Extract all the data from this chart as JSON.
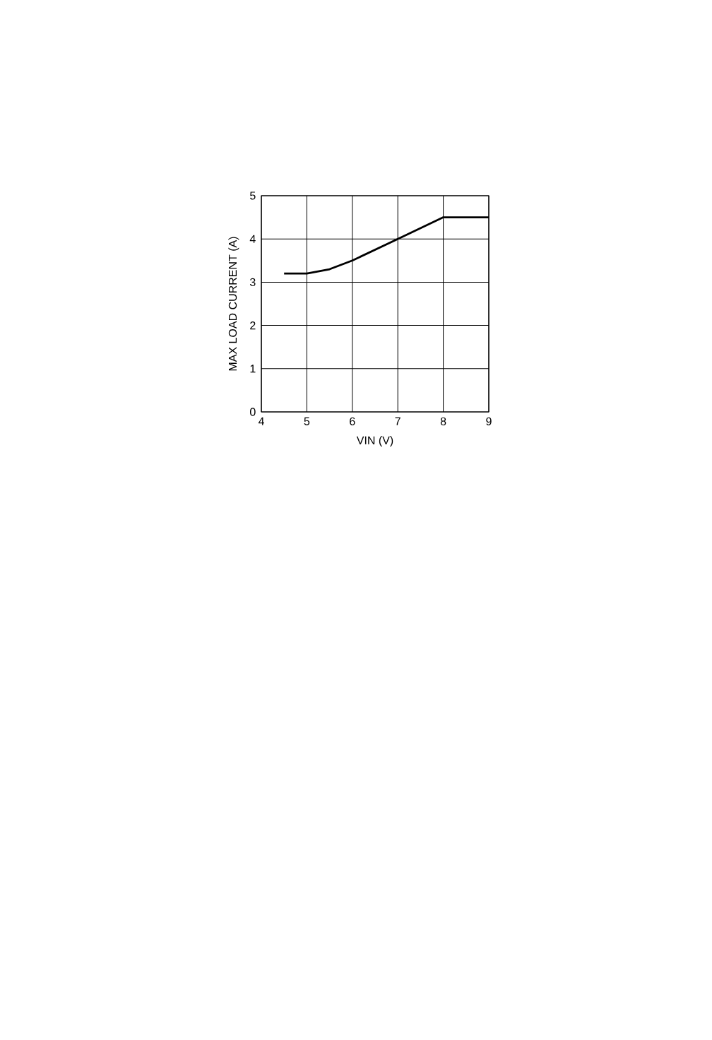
{
  "chart_data": {
    "type": "line",
    "xlabel": "VIN (V)",
    "ylabel": "MAX LOAD CURRENT (A)",
    "x": [
      4.5,
      5,
      5.5,
      6,
      7,
      8,
      9
    ],
    "series": [
      {
        "color": "#000000",
        "values": [
          3.2,
          3.2,
          3.3,
          3.5,
          4.0,
          4.5,
          4.5
        ]
      }
    ],
    "xlim": [
      4,
      9
    ],
    "ylim": [
      0,
      5
    ],
    "xticks": [
      4,
      5,
      6,
      7,
      8,
      9
    ],
    "yticks": [
      0,
      1,
      2,
      3,
      4,
      5
    ],
    "grid": true,
    "marker": "none",
    "line_style": "solid"
  }
}
